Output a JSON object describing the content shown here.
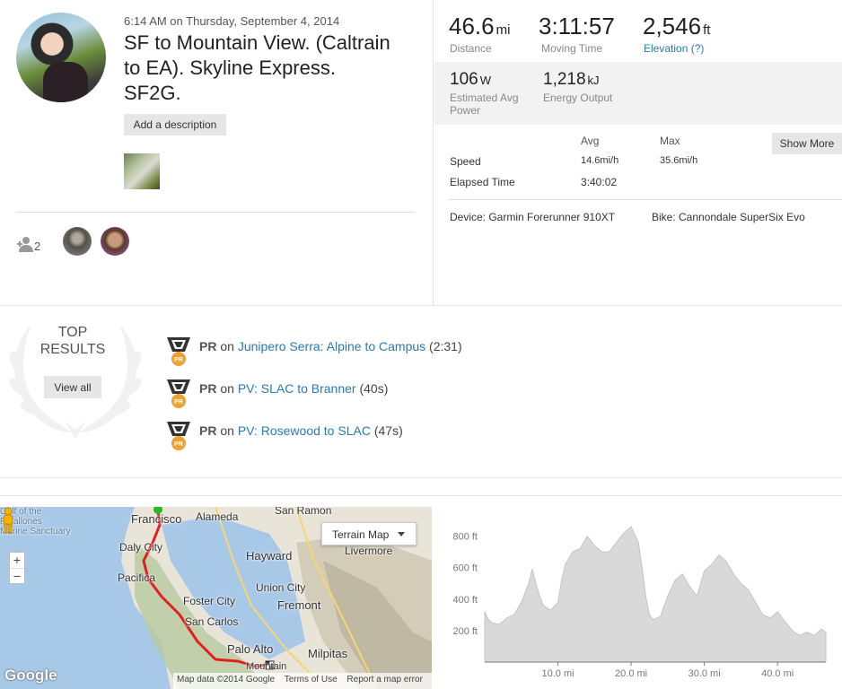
{
  "activity": {
    "datetime": "6:14 AM on Thursday, September 4, 2014",
    "title": "SF to Mountain View. (Caltrain to EA). Skyline Express. SF2G.",
    "add_description_label": "Add a description",
    "kudos_count": "2"
  },
  "stats": {
    "distance": {
      "value": "46.6",
      "unit": "mi",
      "label": "Distance"
    },
    "moving_time": {
      "value": "3:11:57",
      "label": "Moving Time"
    },
    "elevation": {
      "value": "2,546",
      "unit": "ft",
      "label": "Elevation (?)"
    },
    "power": {
      "value": "106",
      "unit": "W",
      "label_line1": "Estimated Avg",
      "label_line2": "Power"
    },
    "energy": {
      "value": "1,218",
      "unit": "kJ",
      "label": "Energy Output"
    },
    "table": {
      "col_avg": "Avg",
      "col_max": "Max",
      "speed_label": "Speed",
      "speed_avg": "14.6mi/h",
      "speed_max": "35.6mi/h",
      "elapsed_label": "Elapsed Time",
      "elapsed_avg": "3:40:02"
    },
    "show_more_label": "Show More",
    "device": "Device: Garmin Forerunner 910XT",
    "bike": "Bike: Cannondale SuperSix Evo"
  },
  "top_results": {
    "heading_line1": "TOP",
    "heading_line2": "RESULTS",
    "view_all_label": "View all",
    "items": [
      {
        "badge": "PR",
        "on": "on",
        "segment": "Junipero Serra: Alpine to Campus",
        "time": "(2:31)"
      },
      {
        "badge": "PR",
        "on": "on",
        "segment": "PV: SLAC to Branner",
        "time": "(40s)"
      },
      {
        "badge": "PR",
        "on": "on",
        "segment": "PV: Rosewood to SLAC",
        "time": "(47s)"
      }
    ],
    "medal_badge_text": "PR"
  },
  "map": {
    "map_type_label": "Terrain Map",
    "zoom_in": "+",
    "zoom_out": "−",
    "labels": {
      "gulf": "Gulf of the",
      "farallones": "Farallones",
      "sanctuary": "Marine Sanctuary",
      "francisco": "Francisco",
      "alameda": "Alameda",
      "san_ramon": "San Ramon",
      "daly_city": "Daly City",
      "livermore": "Livermore",
      "hayward": "Hayward",
      "pacifica": "Pacifica",
      "union_city": "Union City",
      "foster_city": "Foster City",
      "fremont": "Fremont",
      "san_carlos": "San Carlos",
      "palo_alto": "Palo Alto",
      "milpitas": "Milpitas",
      "mountain_view": "Mountain"
    },
    "google_logo": "Google",
    "footer": {
      "map_data": "Map data ©2014 Google",
      "terms": "Terms of Use",
      "report": "Report a map error"
    }
  },
  "chart_data": {
    "type": "area",
    "title": "",
    "xlabel": "",
    "ylabel": "",
    "x_ticks": [
      "10.0 mi",
      "20.0 mi",
      "30.0 mi",
      "40.0 mi"
    ],
    "y_ticks": [
      "200 ft",
      "400 ft",
      "600 ft",
      "800 ft"
    ],
    "xlim": [
      0,
      46.6
    ],
    "ylim": [
      0,
      900
    ],
    "x": [
      0,
      0.5,
      1,
      2,
      3,
      4,
      5,
      6,
      6.5,
      7,
      7.5,
      8,
      9,
      10,
      10.5,
      11,
      12,
      13,
      14,
      15,
      16,
      17,
      18,
      19,
      20,
      21,
      21.5,
      22,
      22.5,
      23,
      24,
      25,
      26,
      27,
      28,
      29,
      30,
      31,
      32,
      33,
      34,
      35,
      36,
      37,
      38,
      39,
      40,
      41,
      42,
      43,
      44,
      45,
      46,
      46.6
    ],
    "y": [
      320,
      270,
      250,
      240,
      280,
      300,
      380,
      500,
      590,
      500,
      420,
      360,
      330,
      380,
      520,
      620,
      700,
      720,
      800,
      740,
      700,
      700,
      760,
      820,
      860,
      760,
      600,
      420,
      300,
      270,
      290,
      420,
      520,
      560,
      480,
      420,
      580,
      620,
      680,
      640,
      560,
      500,
      460,
      380,
      300,
      280,
      320,
      260,
      200,
      170,
      190,
      170,
      210,
      190
    ],
    "color": "#d9d9d9"
  }
}
